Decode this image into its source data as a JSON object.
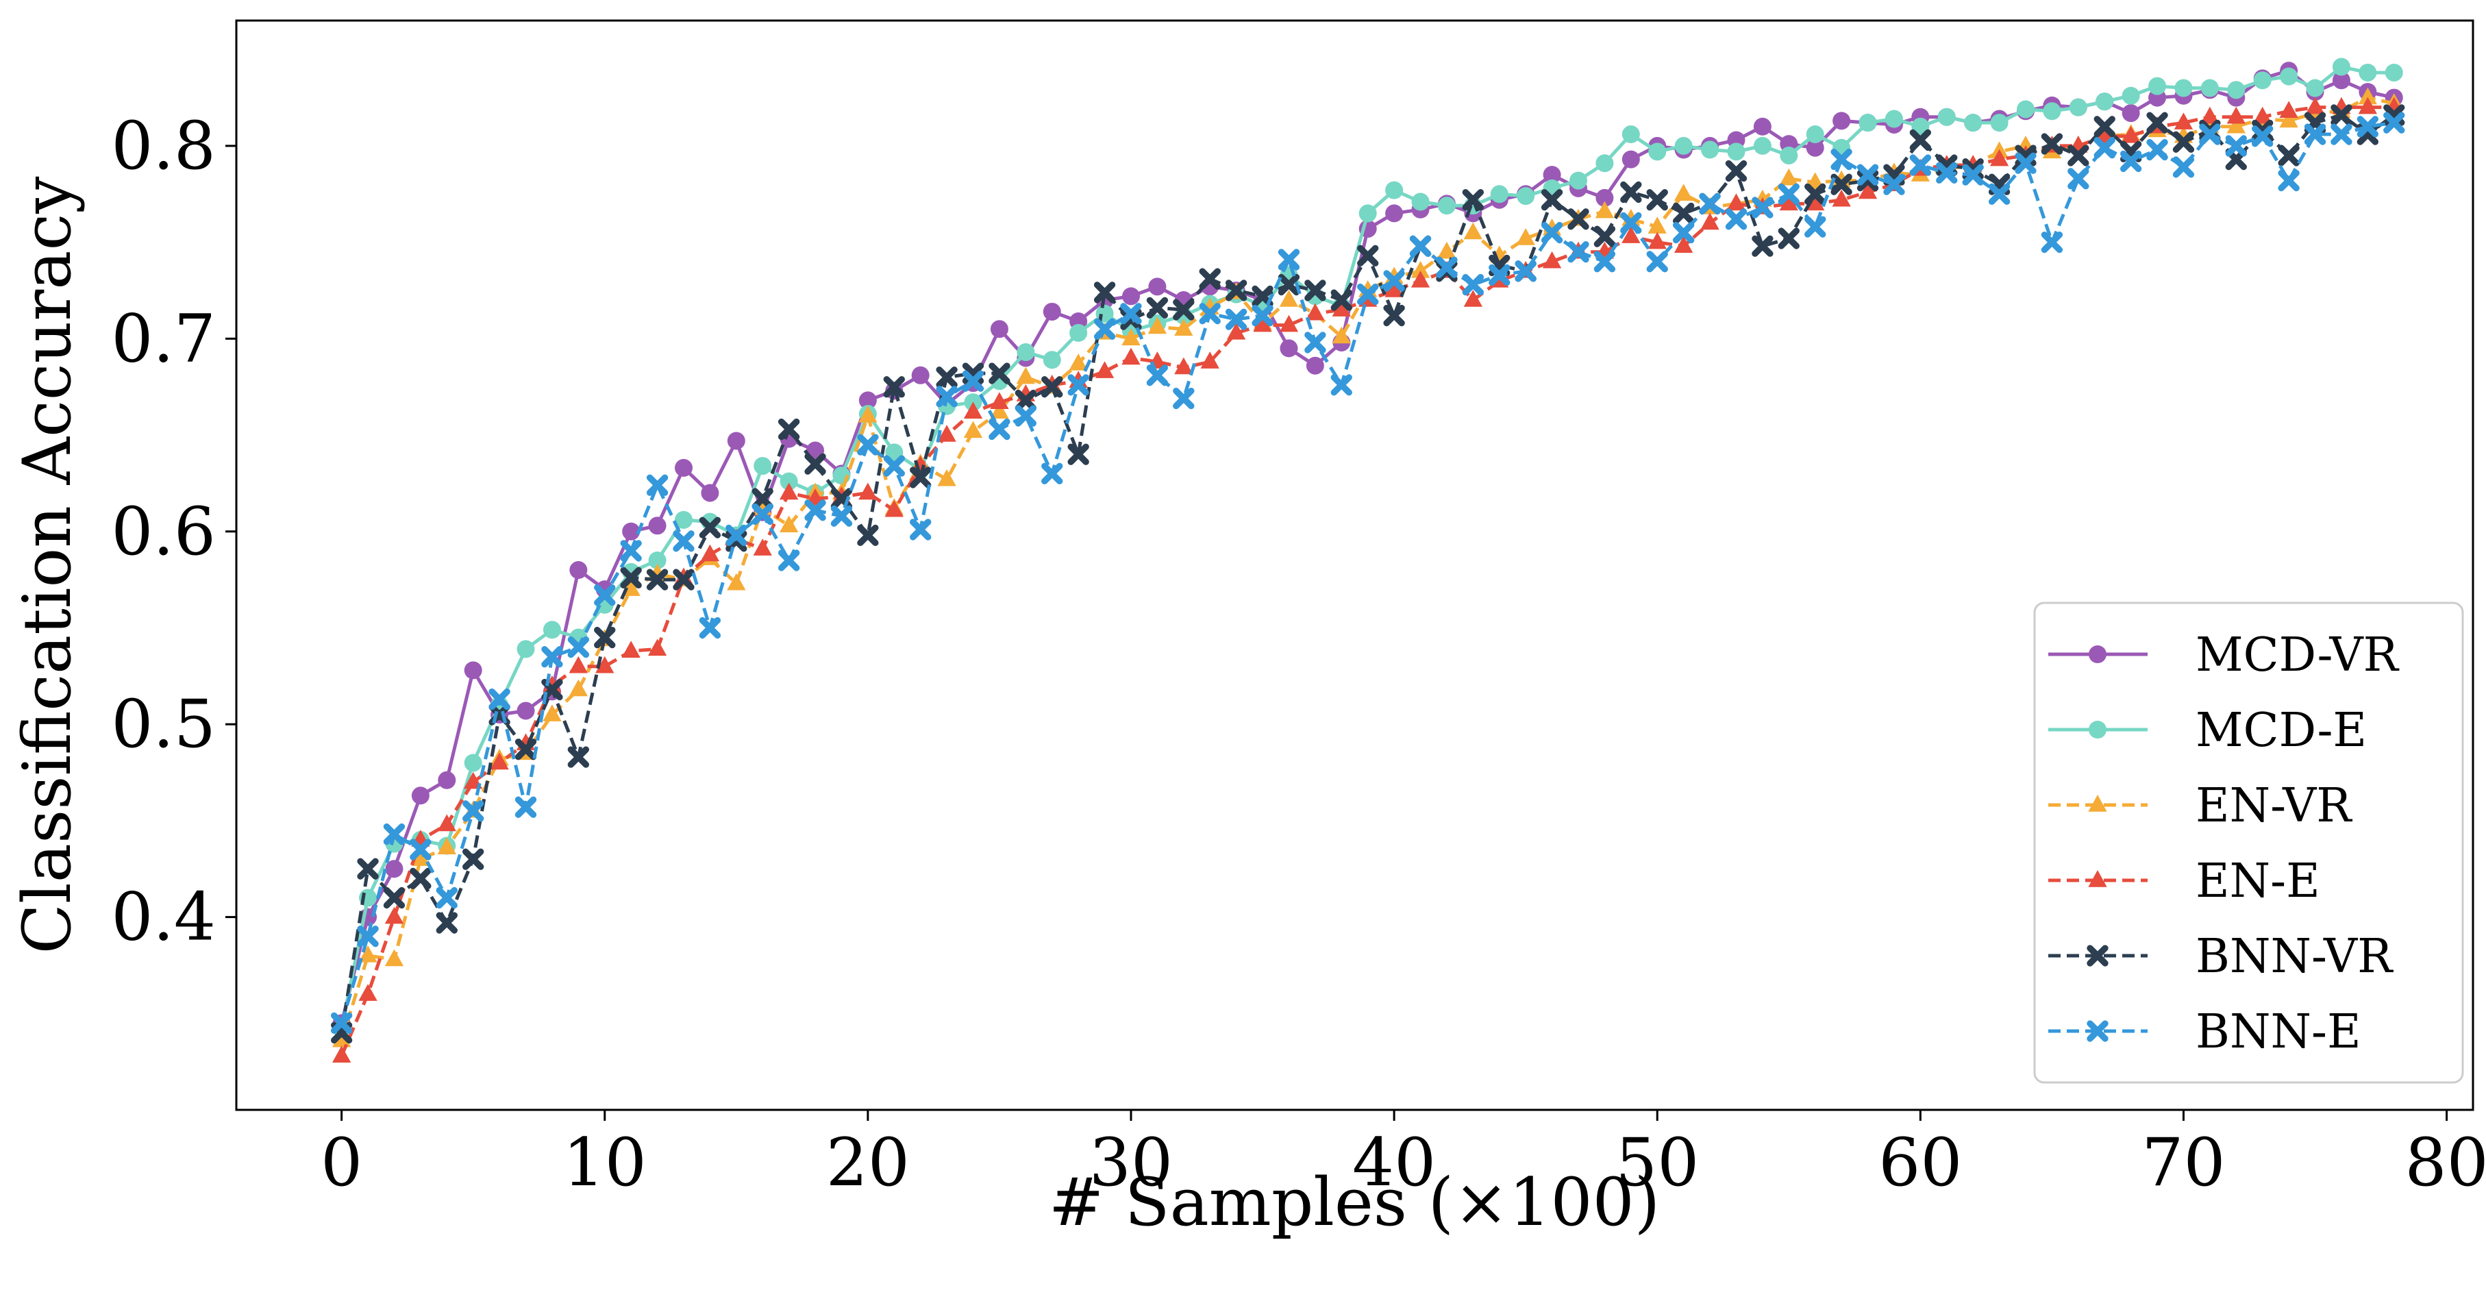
{
  "chart_data": {
    "type": "line",
    "title": "",
    "xlabel": "# Samples (×100)",
    "ylabel": "Classification Accuracy",
    "xlim": [
      -4,
      81
    ],
    "ylim": [
      0.3,
      0.865
    ],
    "xticks": [
      0,
      10,
      20,
      30,
      40,
      50,
      60,
      70,
      80
    ],
    "yticks": [
      0.4,
      0.5,
      0.6,
      0.7,
      0.8
    ],
    "xtick_labels": [
      "0",
      "10",
      "20",
      "30",
      "40",
      "50",
      "60",
      "70",
      "80"
    ],
    "ytick_labels": [
      "0.4",
      "0.5",
      "0.6",
      "0.7",
      "0.8"
    ],
    "grid": false,
    "legend_position": "bottom-right",
    "x": [
      0,
      1,
      2,
      3,
      4,
      5,
      6,
      7,
      8,
      9,
      10,
      11,
      12,
      13,
      14,
      15,
      16,
      17,
      18,
      19,
      20,
      21,
      22,
      23,
      24,
      25,
      26,
      27,
      28,
      29,
      30,
      31,
      32,
      33,
      34,
      35,
      36,
      37,
      38,
      39,
      40,
      41,
      42,
      43,
      44,
      45,
      46,
      47,
      48,
      49,
      50,
      51,
      52,
      53,
      54,
      55,
      56,
      57,
      58,
      59,
      60,
      61,
      62,
      63,
      64,
      65,
      66,
      67,
      68,
      69,
      70,
      71,
      72,
      73,
      74,
      75,
      76,
      77,
      78
    ],
    "series": [
      {
        "name": "MCD-VR",
        "color": "#9b59b6",
        "marker": "circle",
        "dashed": false,
        "values": [
          0.345,
          0.4,
          0.425,
          0.463,
          0.471,
          0.528,
          0.505,
          0.507,
          0.517,
          0.58,
          0.57,
          0.6,
          0.603,
          0.633,
          0.62,
          0.647,
          0.61,
          0.648,
          0.642,
          0.63,
          0.668,
          0.673,
          0.681,
          0.666,
          0.677,
          0.705,
          0.69,
          0.714,
          0.709,
          0.72,
          0.722,
          0.727,
          0.72,
          0.727,
          0.725,
          0.72,
          0.695,
          0.686,
          0.698,
          0.757,
          0.765,
          0.767,
          0.77,
          0.765,
          0.772,
          0.775,
          0.785,
          0.778,
          0.773,
          0.793,
          0.8,
          0.798,
          0.8,
          0.803,
          0.81,
          0.801,
          0.799,
          0.813,
          0.812,
          0.811,
          0.815,
          0.815,
          0.812,
          0.814,
          0.818,
          0.821,
          0.82,
          0.823,
          0.817,
          0.825,
          0.826,
          0.829,
          0.825,
          0.835,
          0.839,
          0.828,
          0.834,
          0.828,
          0.825
        ]
      },
      {
        "name": "MCD-E",
        "color": "#76d7c4",
        "marker": "circle",
        "dashed": false,
        "values": [
          0.342,
          0.41,
          0.438,
          0.44,
          0.437,
          0.48,
          0.51,
          0.539,
          0.549,
          0.545,
          0.562,
          0.579,
          0.585,
          0.606,
          0.605,
          0.598,
          0.634,
          0.626,
          0.62,
          0.629,
          0.661,
          0.641,
          0.632,
          0.665,
          0.667,
          0.678,
          0.693,
          0.689,
          0.703,
          0.713,
          0.704,
          0.708,
          0.712,
          0.718,
          0.723,
          0.717,
          0.733,
          0.722,
          0.717,
          0.765,
          0.777,
          0.771,
          0.769,
          0.769,
          0.775,
          0.774,
          0.778,
          0.782,
          0.791,
          0.806,
          0.797,
          0.8,
          0.798,
          0.797,
          0.8,
          0.795,
          0.806,
          0.799,
          0.812,
          0.814,
          0.81,
          0.815,
          0.812,
          0.812,
          0.819,
          0.818,
          0.82,
          0.823,
          0.826,
          0.831,
          0.83,
          0.83,
          0.829,
          0.834,
          0.836,
          0.83,
          0.841,
          0.838,
          0.838
        ]
      },
      {
        "name": "EN-VR",
        "color": "#f5ab35",
        "marker": "triangle",
        "dashed": true,
        "values": [
          0.336,
          0.38,
          0.378,
          0.43,
          0.436,
          0.455,
          0.482,
          0.485,
          0.505,
          0.518,
          0.544,
          0.57,
          0.578,
          0.575,
          0.586,
          0.573,
          0.612,
          0.603,
          0.62,
          0.62,
          0.66,
          0.612,
          0.635,
          0.627,
          0.652,
          0.662,
          0.68,
          0.675,
          0.687,
          0.703,
          0.7,
          0.706,
          0.705,
          0.716,
          0.724,
          0.708,
          0.72,
          0.713,
          0.701,
          0.725,
          0.732,
          0.735,
          0.745,
          0.755,
          0.743,
          0.752,
          0.757,
          0.762,
          0.766,
          0.762,
          0.758,
          0.775,
          0.768,
          0.77,
          0.772,
          0.783,
          0.781,
          0.782,
          0.782,
          0.786,
          0.785,
          0.788,
          0.79,
          0.797,
          0.8,
          0.797,
          0.8,
          0.805,
          0.806,
          0.808,
          0.805,
          0.81,
          0.81,
          0.814,
          0.813,
          0.817,
          0.818,
          0.825,
          0.822
        ]
      },
      {
        "name": "EN-E",
        "color": "#e74c3c",
        "marker": "triangle",
        "dashed": true,
        "values": [
          0.328,
          0.36,
          0.4,
          0.44,
          0.448,
          0.47,
          0.48,
          0.49,
          0.52,
          0.53,
          0.53,
          0.538,
          0.539,
          0.576,
          0.588,
          0.596,
          0.591,
          0.62,
          0.617,
          0.618,
          0.62,
          0.611,
          0.634,
          0.65,
          0.662,
          0.667,
          0.671,
          0.676,
          0.678,
          0.683,
          0.69,
          0.688,
          0.685,
          0.688,
          0.703,
          0.707,
          0.707,
          0.713,
          0.715,
          0.72,
          0.725,
          0.73,
          0.735,
          0.72,
          0.73,
          0.735,
          0.74,
          0.745,
          0.745,
          0.753,
          0.75,
          0.748,
          0.76,
          0.77,
          0.768,
          0.77,
          0.77,
          0.772,
          0.776,
          0.78,
          0.788,
          0.79,
          0.79,
          0.793,
          0.795,
          0.8,
          0.8,
          0.805,
          0.805,
          0.81,
          0.812,
          0.815,
          0.815,
          0.815,
          0.818,
          0.82,
          0.82,
          0.82,
          0.82
        ]
      },
      {
        "name": "BNN-VR",
        "color": "#2c3e50",
        "marker": "x",
        "dashed": true,
        "values": [
          0.34,
          0.425,
          0.41,
          0.42,
          0.397,
          0.43,
          0.505,
          0.487,
          0.518,
          0.483,
          0.545,
          0.576,
          0.575,
          0.575,
          0.602,
          0.595,
          0.617,
          0.653,
          0.635,
          0.617,
          0.598,
          0.675,
          0.628,
          0.68,
          0.682,
          0.682,
          0.668,
          0.675,
          0.64,
          0.724,
          0.71,
          0.716,
          0.715,
          0.731,
          0.725,
          0.722,
          0.728,
          0.725,
          0.72,
          0.743,
          0.712,
          0.748,
          0.735,
          0.772,
          0.738,
          0.735,
          0.772,
          0.762,
          0.753,
          0.776,
          0.772,
          0.765,
          0.77,
          0.787,
          0.748,
          0.752,
          0.775,
          0.78,
          0.782,
          0.785,
          0.803,
          0.79,
          0.788,
          0.78,
          0.795,
          0.801,
          0.795,
          0.81,
          0.797,
          0.812,
          0.802,
          0.808,
          0.793,
          0.808,
          0.795,
          0.812,
          0.816,
          0.806,
          0.816
        ]
      },
      {
        "name": "BNN-E",
        "color": "#3498db",
        "marker": "x",
        "dashed": true,
        "values": [
          0.345,
          0.39,
          0.443,
          0.435,
          0.41,
          0.455,
          0.513,
          0.457,
          0.535,
          0.54,
          0.567,
          0.59,
          0.624,
          0.595,
          0.55,
          0.598,
          0.609,
          0.585,
          0.611,
          0.608,
          0.645,
          0.634,
          0.601,
          0.67,
          0.678,
          0.653,
          0.66,
          0.63,
          0.676,
          0.705,
          0.713,
          0.681,
          0.669,
          0.713,
          0.71,
          0.712,
          0.741,
          0.698,
          0.676,
          0.723,
          0.73,
          0.748,
          0.737,
          0.728,
          0.733,
          0.735,
          0.755,
          0.745,
          0.74,
          0.76,
          0.74,
          0.755,
          0.77,
          0.762,
          0.768,
          0.775,
          0.758,
          0.793,
          0.785,
          0.78,
          0.79,
          0.786,
          0.785,
          0.775,
          0.791,
          0.75,
          0.783,
          0.799,
          0.792,
          0.798,
          0.789,
          0.806,
          0.8,
          0.805,
          0.782,
          0.806,
          0.806,
          0.81,
          0.812
        ]
      }
    ]
  }
}
